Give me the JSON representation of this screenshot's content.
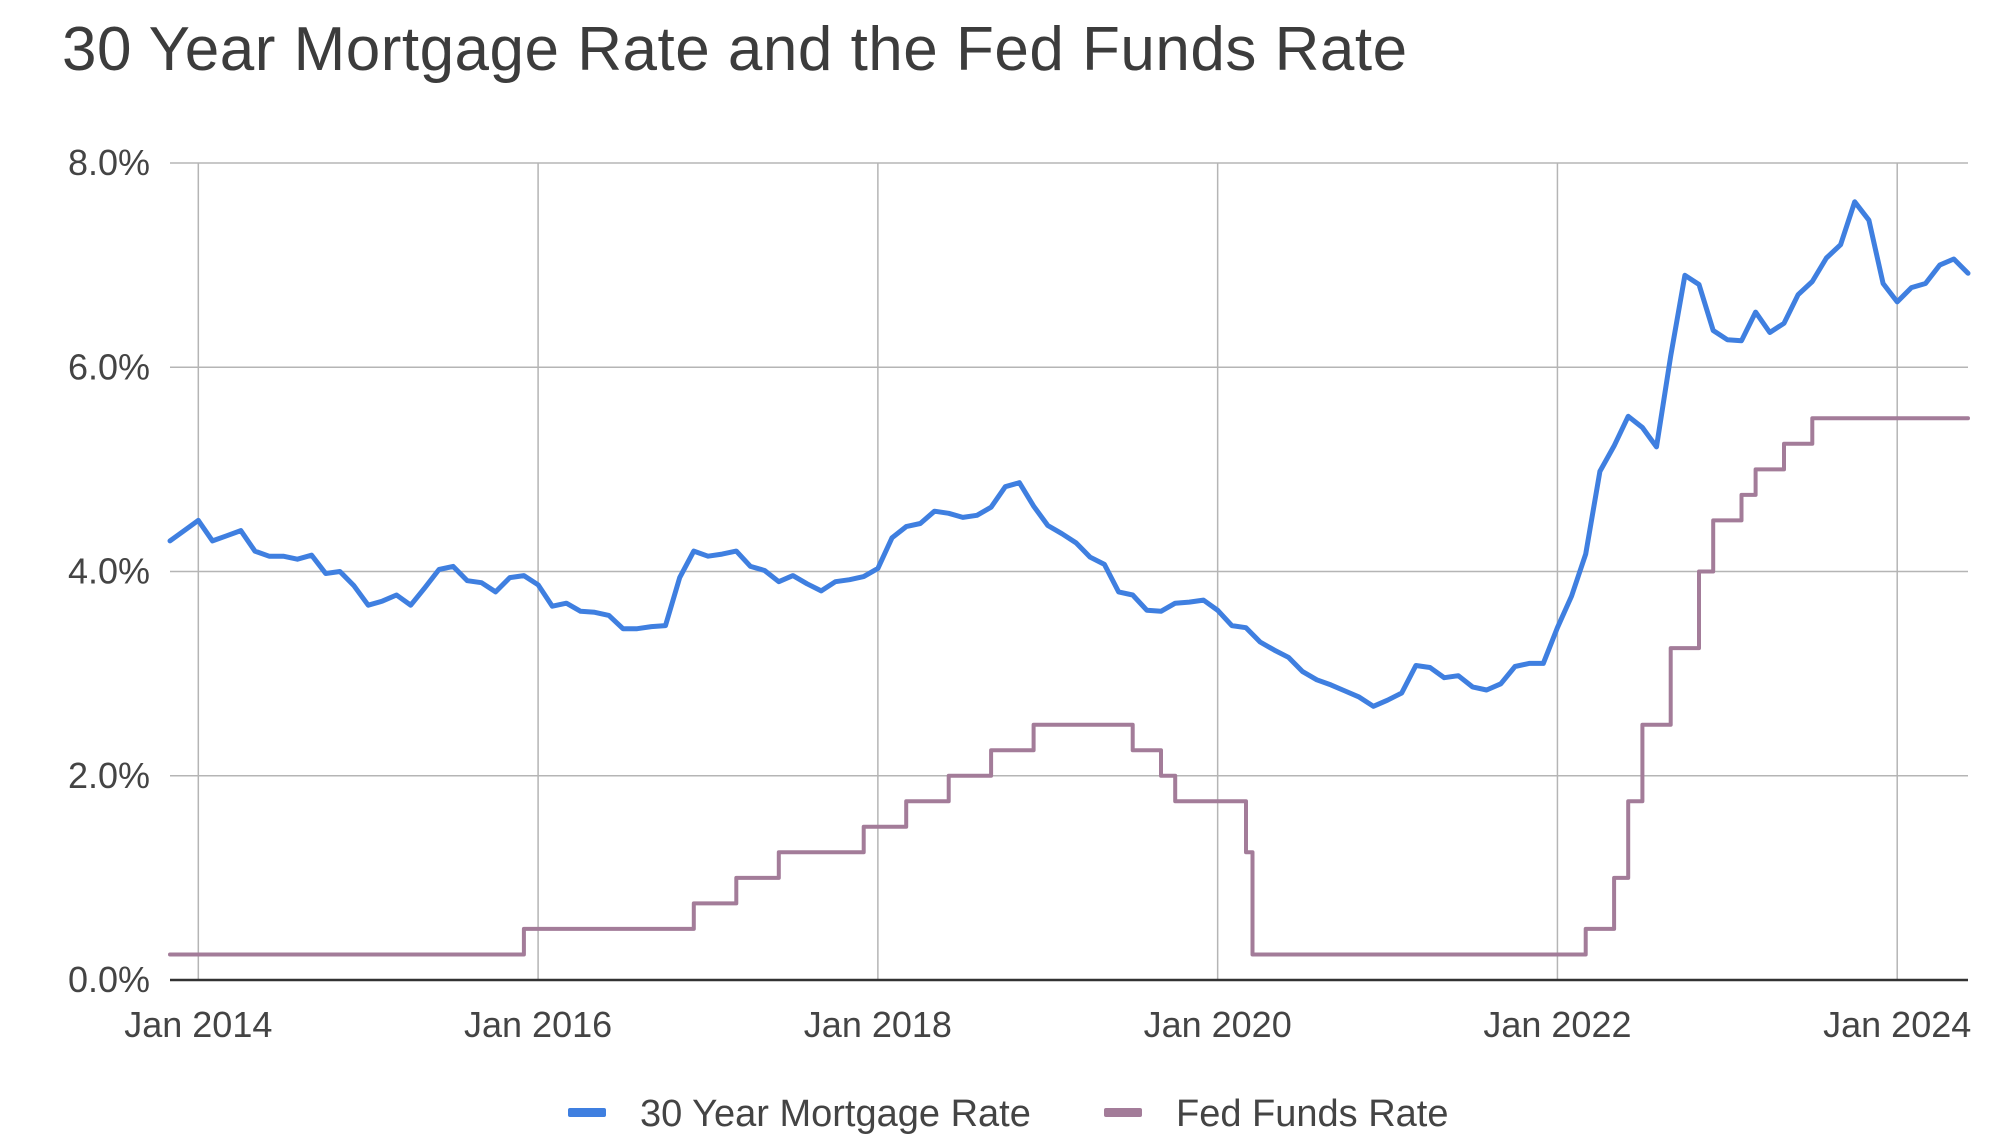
{
  "chart_data": {
    "type": "line",
    "title": "30 Year Mortgage Rate and the Fed Funds Rate",
    "xlabel": "",
    "ylabel": "",
    "ylim": [
      0,
      8
    ],
    "y_ticks": [
      "0.0%",
      "2.0%",
      "4.0%",
      "6.0%",
      "8.0%"
    ],
    "x_ticks": [
      "Jan 2014",
      "Jan 2016",
      "Jan 2018",
      "Jan 2020",
      "Jan 2022",
      "Jan 2024"
    ],
    "xlim": [
      "2013-11",
      "2024-06"
    ],
    "grid": true,
    "legend_position": "bottom",
    "colors": {
      "mortgage": "#3f7fe0",
      "fed": "#a37c99"
    },
    "series": [
      {
        "name": "30 Year Mortgage Rate",
        "interpolation": "linear",
        "x": [
          "2013-11",
          "2013-12",
          "2014-01",
          "2014-02",
          "2014-03",
          "2014-04",
          "2014-05",
          "2014-06",
          "2014-07",
          "2014-08",
          "2014-09",
          "2014-10",
          "2014-11",
          "2014-12",
          "2015-01",
          "2015-02",
          "2015-03",
          "2015-04",
          "2015-05",
          "2015-06",
          "2015-07",
          "2015-08",
          "2015-09",
          "2015-10",
          "2015-11",
          "2015-12",
          "2016-01",
          "2016-02",
          "2016-03",
          "2016-04",
          "2016-05",
          "2016-06",
          "2016-07",
          "2016-08",
          "2016-09",
          "2016-10",
          "2016-11",
          "2016-12",
          "2017-01",
          "2017-02",
          "2017-03",
          "2017-04",
          "2017-05",
          "2017-06",
          "2017-07",
          "2017-08",
          "2017-09",
          "2017-10",
          "2017-11",
          "2017-12",
          "2018-01",
          "2018-02",
          "2018-03",
          "2018-04",
          "2018-05",
          "2018-06",
          "2018-07",
          "2018-08",
          "2018-09",
          "2018-10",
          "2018-11",
          "2018-12",
          "2019-01",
          "2019-02",
          "2019-03",
          "2019-04",
          "2019-05",
          "2019-06",
          "2019-07",
          "2019-08",
          "2019-09",
          "2019-10",
          "2019-11",
          "2019-12",
          "2020-01",
          "2020-02",
          "2020-03",
          "2020-04",
          "2020-05",
          "2020-06",
          "2020-07",
          "2020-08",
          "2020-09",
          "2020-10",
          "2020-11",
          "2020-12",
          "2021-01",
          "2021-02",
          "2021-03",
          "2021-04",
          "2021-05",
          "2021-06",
          "2021-07",
          "2021-08",
          "2021-09",
          "2021-10",
          "2021-11",
          "2021-12",
          "2022-01",
          "2022-02",
          "2022-03",
          "2022-04",
          "2022-05",
          "2022-06",
          "2022-07",
          "2022-08",
          "2022-09",
          "2022-10",
          "2022-11",
          "2022-12",
          "2023-01",
          "2023-02",
          "2023-03",
          "2023-04",
          "2023-05",
          "2023-06",
          "2023-07",
          "2023-08",
          "2023-09",
          "2023-10",
          "2023-11",
          "2023-12",
          "2024-01",
          "2024-02",
          "2024-03",
          "2024-04",
          "2024-05",
          "2024-06"
        ],
        "values": [
          4.3,
          4.4,
          4.5,
          4.3,
          4.35,
          4.4,
          4.2,
          4.15,
          4.15,
          4.12,
          4.16,
          3.98,
          4.0,
          3.86,
          3.67,
          3.71,
          3.77,
          3.67,
          3.84,
          4.02,
          4.05,
          3.91,
          3.89,
          3.8,
          3.94,
          3.96,
          3.87,
          3.66,
          3.69,
          3.61,
          3.6,
          3.57,
          3.44,
          3.44,
          3.46,
          3.47,
          3.94,
          4.2,
          4.15,
          4.17,
          4.2,
          4.05,
          4.01,
          3.9,
          3.96,
          3.88,
          3.81,
          3.9,
          3.92,
          3.95,
          4.03,
          4.33,
          4.44,
          4.47,
          4.59,
          4.57,
          4.53,
          4.55,
          4.63,
          4.83,
          4.87,
          4.64,
          4.45,
          4.37,
          4.28,
          4.14,
          4.07,
          3.8,
          3.77,
          3.62,
          3.61,
          3.69,
          3.7,
          3.72,
          3.62,
          3.47,
          3.45,
          3.31,
          3.23,
          3.16,
          3.02,
          2.94,
          2.89,
          2.83,
          2.77,
          2.68,
          2.74,
          2.81,
          3.08,
          3.06,
          2.96,
          2.98,
          2.87,
          2.84,
          2.9,
          3.07,
          3.1,
          3.1,
          3.45,
          3.76,
          4.17,
          4.98,
          5.23,
          5.52,
          5.41,
          5.22,
          6.11,
          6.9,
          6.81,
          6.36,
          6.27,
          6.26,
          6.54,
          6.34,
          6.43,
          6.71,
          6.84,
          7.07,
          7.2,
          7.62,
          7.44,
          6.82,
          6.64,
          6.78,
          6.82,
          7.0,
          7.06,
          6.92
        ]
      },
      {
        "name": "Fed Funds Rate",
        "interpolation": "step",
        "x": [
          "2013-11",
          "2015-12",
          "2016-12",
          "2017-03",
          "2017-06",
          "2017-12",
          "2018-03",
          "2018-06",
          "2018-09",
          "2018-12",
          "2019-07",
          "2019-09",
          "2019-10",
          "2020-03",
          "2020-03-15",
          "2022-03",
          "2022-05",
          "2022-06",
          "2022-07",
          "2022-09",
          "2022-11",
          "2022-12",
          "2023-02",
          "2023-03",
          "2023-05",
          "2023-07",
          "2024-06"
        ],
        "values": [
          0.25,
          0.5,
          0.75,
          1.0,
          1.25,
          1.5,
          1.75,
          2.0,
          2.25,
          2.5,
          2.25,
          2.0,
          1.75,
          1.25,
          0.25,
          0.5,
          1.0,
          1.75,
          2.5,
          3.25,
          4.0,
          4.5,
          4.75,
          5.0,
          5.25,
          5.5,
          5.5
        ]
      }
    ]
  }
}
